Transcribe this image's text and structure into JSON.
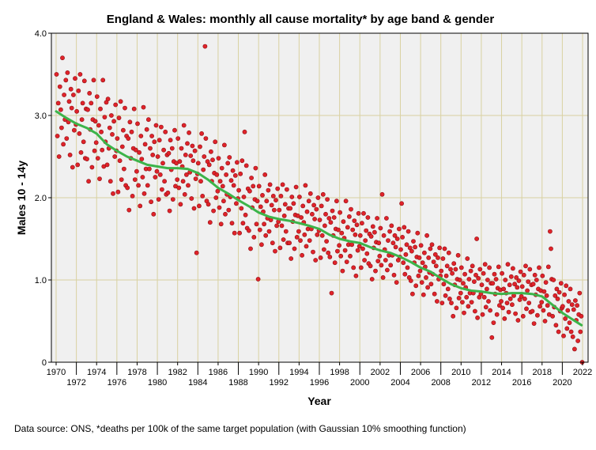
{
  "chart_data": {
    "type": "scatter",
    "title": "England & Wales: monthly all cause mortality* by age band & gender",
    "xlabel": "Year",
    "ylabel": "Males 10 - 14y",
    "footnote": "Data source: ONS, *deaths per 100k of the same target population (with Gaussian 10% smoothing function)",
    "xlim": [
      1970,
      2022
    ],
    "ylim": [
      0,
      4.0
    ],
    "x_ticks": [
      1970,
      1972,
      1974,
      1976,
      1978,
      1980,
      1982,
      1984,
      1986,
      1988,
      1990,
      1992,
      1994,
      1996,
      1998,
      2000,
      2002,
      2004,
      2006,
      2008,
      2010,
      2012,
      2014,
      2016,
      2018,
      2020,
      2022
    ],
    "y_ticks": [
      "0",
      "1.0",
      "2.0",
      "3.0",
      "4.0"
    ],
    "y_tick_values": [
      0,
      1,
      2,
      3,
      4
    ],
    "grid": true,
    "colors": {
      "points": "#e0232a",
      "point_edge": "#8e1015",
      "smooth_line": "#3cb44a",
      "grid": "#d9d1a0",
      "plot_bg": "#f0f0f0"
    },
    "series": [
      {
        "name": "monthly deaths per 100k",
        "start_year": 1970,
        "monthly_values_by_year": [
          [
            3.5,
            2.75,
            3.15,
            2.5,
            3.35,
            3.07,
            2.85,
            3.7,
            2.65,
            3.25,
            2.95,
            3.43
          ],
          [
            2.72,
            3.52,
            2.92,
            3.17,
            2.52,
            3.32,
            3.09,
            2.37,
            3.25,
            2.82,
            3.45,
            2.89
          ],
          [
            3.05,
            2.4,
            3.3,
            2.78,
            3.5,
            2.55,
            2.95,
            3.15,
            2.68,
            3.42,
            2.48,
            3.08
          ],
          [
            2.47,
            3.07,
            2.2,
            3.27,
            2.83,
            3.15,
            2.37,
            2.95,
            3.43,
            2.57,
            2.93,
            2.67
          ],
          [
            3.23,
            2.48,
            2.88,
            2.23,
            3.08,
            2.8,
            2.58,
            3.43,
            2.38,
            2.98,
            2.68,
            3.16
          ],
          [
            2.4,
            3.2,
            2.6,
            2.85,
            2.2,
            3.0,
            2.77,
            2.05,
            2.93,
            2.5,
            3.13,
            2.57
          ],
          [
            2.72,
            2.07,
            2.97,
            2.45,
            3.17,
            2.22,
            2.62,
            2.82,
            2.35,
            3.09,
            2.15,
            2.75
          ],
          [
            2.12,
            2.72,
            1.85,
            2.92,
            2.48,
            2.8,
            2.02,
            2.6,
            3.08,
            2.22,
            2.58,
            2.32
          ],
          [
            2.9,
            2.15,
            2.55,
            1.9,
            2.75,
            2.47,
            2.25,
            3.1,
            2.05,
            2.65,
            2.35,
            2.83
          ],
          [
            2.15,
            2.95,
            2.35,
            2.6,
            1.95,
            2.75,
            2.52,
            1.8,
            2.68,
            2.25,
            2.88,
            2.32
          ],
          [
            2.5,
            1.98,
            2.7,
            2.28,
            2.86,
            2.1,
            2.42,
            2.58,
            2.2,
            2.8,
            2.04,
            2.52
          ],
          [
            2.06,
            2.54,
            1.84,
            2.7,
            2.34,
            2.6,
            1.98,
            2.44,
            2.82,
            2.14,
            2.42,
            2.22
          ],
          [
            2.72,
            2.12,
            2.44,
            1.92,
            2.6,
            2.38,
            2.2,
            2.88,
            2.04,
            2.52,
            2.28,
            2.66
          ],
          [
            2.15,
            2.79,
            2.31,
            2.51,
            1.99,
            2.63,
            2.45,
            1.87,
            2.57,
            2.23,
            1.33,
            2.29
          ],
          [
            2.42,
            1.9,
            2.62,
            2.2,
            2.78,
            2.02,
            2.34,
            2.5,
            3.84,
            2.72,
            1.96,
            2.44
          ],
          [
            1.92,
            2.4,
            1.7,
            2.56,
            2.2,
            2.46,
            1.84,
            2.3,
            2.68,
            2.0,
            2.28,
            2.08
          ],
          [
            2.48,
            1.88,
            2.2,
            1.68,
            2.36,
            2.14,
            1.96,
            2.64,
            1.8,
            2.28,
            2.04,
            2.42
          ],
          [
            1.85,
            2.49,
            2.01,
            2.21,
            1.69,
            2.33,
            2.15,
            1.57,
            2.27,
            1.93,
            2.43,
            1.99
          ],
          [
            2.09,
            1.57,
            2.29,
            1.87,
            2.45,
            1.69,
            2.01,
            2.8,
            1.79,
            2.39,
            1.63,
            2.11
          ],
          [
            1.6,
            2.08,
            1.38,
            2.24,
            1.88,
            2.14,
            1.52,
            1.98,
            2.36,
            1.68,
            1.96,
            1.01
          ],
          [
            2.14,
            1.61,
            1.89,
            1.43,
            2.03,
            1.83,
            1.68,
            2.28,
            1.54,
            1.96,
            1.75,
            2.09
          ],
          [
            1.59,
            2.16,
            1.73,
            1.91,
            1.45,
            2.02,
            1.85,
            1.35,
            1.97,
            1.66,
            2.11,
            1.71
          ],
          [
            1.85,
            1.39,
            2.02,
            1.66,
            2.16,
            1.49,
            1.78,
            1.92,
            1.59,
            2.1,
            1.45,
            1.87
          ],
          [
            1.45,
            1.87,
            1.26,
            2.01,
            1.71,
            1.93,
            1.38,
            1.79,
            2.13,
            1.52,
            1.78,
            1.59
          ],
          [
            2.01,
            1.48,
            1.76,
            1.3,
            1.9,
            1.7,
            1.55,
            2.15,
            1.41,
            1.83,
            1.62,
            1.96
          ],
          [
            1.48,
            2.05,
            1.62,
            1.8,
            1.34,
            1.91,
            1.74,
            1.24,
            1.86,
            1.55,
            2.0,
            1.6
          ],
          [
            1.73,
            1.27,
            1.9,
            1.54,
            2.04,
            1.37,
            1.66,
            1.8,
            1.47,
            1.98,
            1.33,
            1.75
          ],
          [
            1.28,
            1.7,
            0.84,
            1.84,
            1.54,
            1.76,
            1.21,
            1.62,
            1.96,
            1.35,
            1.61,
            1.42
          ],
          [
            1.82,
            1.29,
            1.57,
            1.11,
            1.71,
            1.51,
            1.36,
            1.96,
            1.22,
            1.64,
            1.43,
            1.77
          ],
          [
            1.29,
            1.86,
            1.43,
            1.61,
            1.15,
            1.72,
            1.55,
            1.05,
            1.67,
            1.36,
            1.81,
            1.41
          ],
          [
            1.54,
            1.15,
            1.69,
            1.38,
            1.81,
            1.24,
            1.48,
            1.6,
            1.32,
            1.76,
            1.2,
            1.56
          ],
          [
            1.17,
            1.53,
            1.01,
            1.65,
            1.39,
            1.58,
            1.11,
            1.46,
            1.75,
            1.23,
            1.45,
            1.29
          ],
          [
            1.63,
            1.18,
            2.04,
            1.03,
            1.54,
            1.37,
            1.24,
            1.75,
            1.12,
            1.48,
            1.3,
            1.59
          ],
          [
            1.18,
            1.66,
            1.3,
            1.45,
            1.06,
            1.54,
            1.4,
            0.97,
            1.5,
            1.24,
            1.62,
            1.28
          ],
          [
            1.37,
            1.93,
            1.52,
            1.21,
            1.64,
            1.07,
            1.31,
            1.43,
            1.15,
            1.59,
            1.03,
            1.39
          ],
          [
            0.99,
            1.35,
            0.83,
            1.47,
            1.21,
            1.4,
            0.93,
            1.28,
            1.57,
            1.05,
            1.27,
            1.11
          ],
          [
            1.42,
            0.97,
            1.21,
            0.82,
            1.33,
            1.16,
            1.03,
            1.54,
            0.91,
            1.27,
            1.09,
            1.38
          ],
          [
            0.95,
            1.43,
            1.07,
            1.22,
            0.83,
            1.31,
            1.17,
            0.74,
            1.27,
            1.01,
            1.39,
            1.05
          ],
          [
            1.11,
            0.72,
            1.26,
            0.95,
            1.38,
            0.81,
            1.05,
            1.17,
            0.89,
            1.33,
            0.77,
            1.13
          ],
          [
            0.72,
            1.08,
            0.56,
            1.2,
            0.94,
            1.13,
            0.66,
            1.01,
            1.3,
            0.78,
            1.0,
            0.84
          ],
          [
            1.15,
            0.73,
            0.96,
            0.6,
            1.07,
            0.91,
            0.79,
            1.26,
            0.68,
            1.01,
            0.84,
            1.11
          ],
          [
            0.73,
            1.17,
            0.84,
            0.98,
            0.62,
            1.06,
            1.5,
            0.54,
            1.02,
            0.79,
            1.13,
            0.83
          ],
          [
            0.94,
            0.58,
            1.08,
            0.79,
            1.19,
            0.67,
            0.89,
            1.0,
            0.74,
            1.15,
            0.63,
            0.96
          ],
          [
            0.3,
            0.96,
            0.48,
            1.07,
            0.83,
            1.01,
            0.58,
            0.9,
            1.16,
            0.69,
            0.88,
            0.74
          ],
          [
            1.08,
            0.66,
            0.89,
            0.53,
            1.0,
            0.84,
            0.72,
            1.19,
            0.61,
            0.94,
            0.77,
            1.04
          ],
          [
            0.7,
            1.14,
            0.81,
            0.95,
            0.59,
            1.03,
            0.91,
            0.51,
            0.99,
            0.76,
            1.1,
            0.8
          ],
          [
            0.92,
            0.56,
            1.06,
            0.77,
            1.17,
            0.65,
            0.87,
            0.98,
            0.72,
            1.13,
            0.61,
            0.94
          ],
          [
            0.62,
            0.95,
            0.47,
            1.06,
            0.82,
            1.0,
            0.57,
            0.89,
            1.15,
            0.68,
            0.87,
            0.73
          ],
          [
            1.05,
            0.63,
            0.86,
            0.5,
            0.97,
            0.81,
            0.69,
            1.16,
            0.58,
            1.59,
            1.38,
            1.01
          ],
          [
            0.56,
            1.0,
            0.67,
            0.81,
            0.45,
            0.89,
            0.77,
            0.37,
            0.85,
            0.62,
            0.96,
            0.66
          ],
          [
            0.68,
            0.32,
            0.82,
            0.53,
            0.93,
            0.41,
            0.63,
            0.74,
            0.48,
            0.89,
            0.37,
            0.7
          ],
          [
            0.31,
            0.64,
            0.16,
            0.75,
            0.51,
            0.69,
            0.26,
            0.58,
            0.84,
            0.37,
            0.56,
            0.0
          ]
        ]
      },
      {
        "name": "Gaussian 10% smoothing",
        "x": [
          1970,
          1971,
          1972,
          1973,
          1974,
          1975,
          1976,
          1977,
          1978,
          1979,
          1980,
          1981,
          1982,
          1983,
          1984,
          1985,
          1986,
          1987,
          1988,
          1989,
          1990,
          1991,
          1992,
          1993,
          1994,
          1995,
          1996,
          1997,
          1998,
          1999,
          2000,
          2001,
          2002,
          2003,
          2004,
          2005,
          2006,
          2007,
          2008,
          2009,
          2010,
          2011,
          2012,
          2013,
          2014,
          2015,
          2016,
          2017,
          2018,
          2019,
          2020,
          2021,
          2021.9
        ],
        "y": [
          3.05,
          2.97,
          2.9,
          2.85,
          2.78,
          2.65,
          2.57,
          2.5,
          2.45,
          2.4,
          2.38,
          2.36,
          2.36,
          2.35,
          2.3,
          2.22,
          2.12,
          2.05,
          1.97,
          1.9,
          1.82,
          1.77,
          1.74,
          1.72,
          1.69,
          1.66,
          1.62,
          1.55,
          1.5,
          1.47,
          1.45,
          1.4,
          1.36,
          1.33,
          1.28,
          1.22,
          1.15,
          1.1,
          1.02,
          0.95,
          0.9,
          0.87,
          0.86,
          0.84,
          0.83,
          0.84,
          0.84,
          0.83,
          0.8,
          0.7,
          0.6,
          0.52,
          0.45
        ]
      }
    ]
  }
}
